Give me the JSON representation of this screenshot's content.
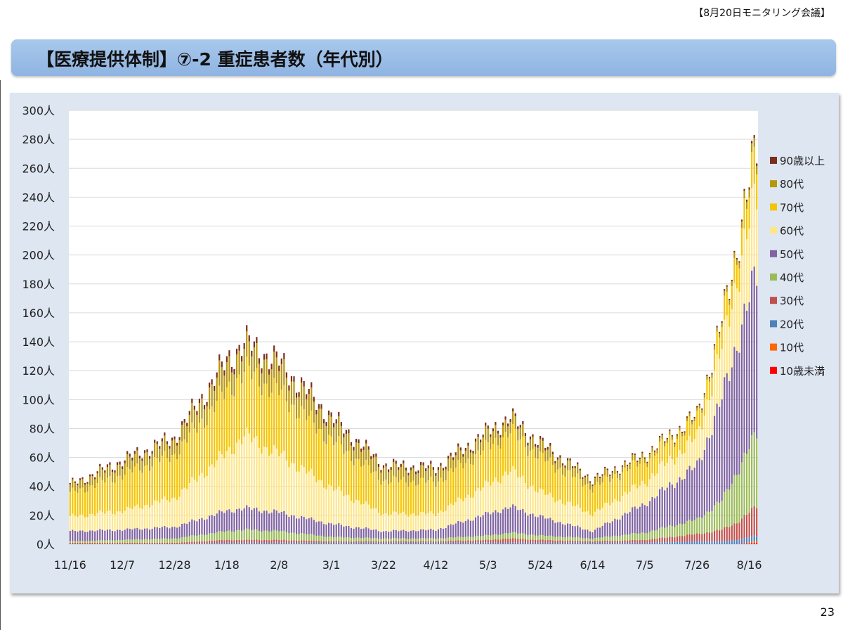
{
  "header": {
    "meeting": "【8月20日モニタリング会議】"
  },
  "title": "【医療提供体制】⑦-2 重症患者数（年代別）",
  "page_number": "23",
  "colors": {
    "panel_bg": "#dde6f1",
    "plot_bg": "#ffffff",
    "title_bar": "#95b8e4"
  },
  "chart_data": {
    "type": "bar",
    "stacked": true,
    "y_unit": "人",
    "ylim": [
      0,
      300
    ],
    "y_ticks": [
      "0人",
      "20人",
      "40人",
      "60人",
      "80人",
      "100人",
      "120人",
      "140人",
      "160人",
      "180人",
      "200人",
      "220人",
      "240人",
      "260人",
      "280人",
      "300人"
    ],
    "x_tick_labels": [
      "11/16",
      "12/7",
      "12/28",
      "1/18",
      "2/8",
      "3/1",
      "3/22",
      "4/12",
      "5/3",
      "5/24",
      "6/14",
      "7/5",
      "7/26",
      "8/16"
    ],
    "x_tick_spacing_days": 21,
    "total_days": 276,
    "grid": true,
    "legend_position": "right",
    "series": [
      {
        "name": "10歳未満",
        "color": "#ff0000"
      },
      {
        "name": "10代",
        "color": "#ff6600"
      },
      {
        "name": "20代",
        "color": "#4f81bd"
      },
      {
        "name": "30代",
        "color": "#c0504d"
      },
      {
        "name": "40代",
        "color": "#9bbb59"
      },
      {
        "name": "50代",
        "color": "#8064a2"
      },
      {
        "name": "60代",
        "color": "#fde68a"
      },
      {
        "name": "70代",
        "color": "#f5c400"
      },
      {
        "name": "80代",
        "color": "#b8960c"
      },
      {
        "name": "90歳以上",
        "color": "#7a2e1e"
      }
    ],
    "keypoints": [
      {
        "day": 0,
        "values": [
          0,
          0,
          0,
          1,
          1,
          7,
          10,
          16,
          5,
          1
        ]
      },
      {
        "day": 21,
        "values": [
          0,
          0,
          0,
          1,
          2,
          7,
          13,
          25,
          8,
          2
        ]
      },
      {
        "day": 42,
        "values": [
          0,
          0,
          0,
          1,
          3,
          8,
          20,
          30,
          10,
          2
        ]
      },
      {
        "day": 63,
        "values": [
          0,
          0,
          1,
          2,
          6,
          14,
          40,
          43,
          17,
          4
        ]
      },
      {
        "day": 70,
        "values": [
          0,
          0,
          1,
          2,
          7,
          15,
          50,
          45,
          16,
          4
        ]
      },
      {
        "day": 84,
        "values": [
          0,
          0,
          1,
          2,
          6,
          13,
          40,
          43,
          17,
          4
        ]
      },
      {
        "day": 105,
        "values": [
          0,
          0,
          1,
          1,
          3,
          9,
          25,
          33,
          13,
          3
        ]
      },
      {
        "day": 126,
        "values": [
          0,
          0,
          1,
          1,
          2,
          5,
          12,
          23,
          9,
          2
        ]
      },
      {
        "day": 147,
        "values": [
          0,
          0,
          1,
          1,
          2,
          6,
          11,
          22,
          8,
          2
        ]
      },
      {
        "day": 168,
        "values": [
          0,
          0,
          1,
          2,
          3,
          15,
          20,
          26,
          9,
          2
        ]
      },
      {
        "day": 177,
        "values": [
          0,
          0,
          1,
          3,
          4,
          18,
          25,
          27,
          8,
          2
        ]
      },
      {
        "day": 189,
        "values": [
          0,
          0,
          1,
          2,
          3,
          13,
          17,
          24,
          8,
          2
        ]
      },
      {
        "day": 210,
        "values": [
          0,
          0,
          1,
          1,
          2,
          5,
          12,
          18,
          5,
          1
        ]
      },
      {
        "day": 231,
        "values": [
          0,
          0,
          1,
          2,
          5,
          20,
          15,
          15,
          3,
          1
        ]
      },
      {
        "day": 252,
        "values": [
          0,
          0,
          2,
          5,
          10,
          37,
          20,
          12,
          2,
          1
        ]
      },
      {
        "day": 262,
        "values": [
          0,
          0,
          2,
          8,
          20,
          70,
          35,
          15,
          3,
          1
        ]
      },
      {
        "day": 268,
        "values": [
          0,
          0,
          3,
          12,
          35,
          90,
          45,
          17,
          4,
          1
        ]
      },
      {
        "day": 276,
        "values": [
          1,
          1,
          4,
          20,
          50,
          110,
          55,
          25,
          6,
          2
        ]
      }
    ]
  }
}
